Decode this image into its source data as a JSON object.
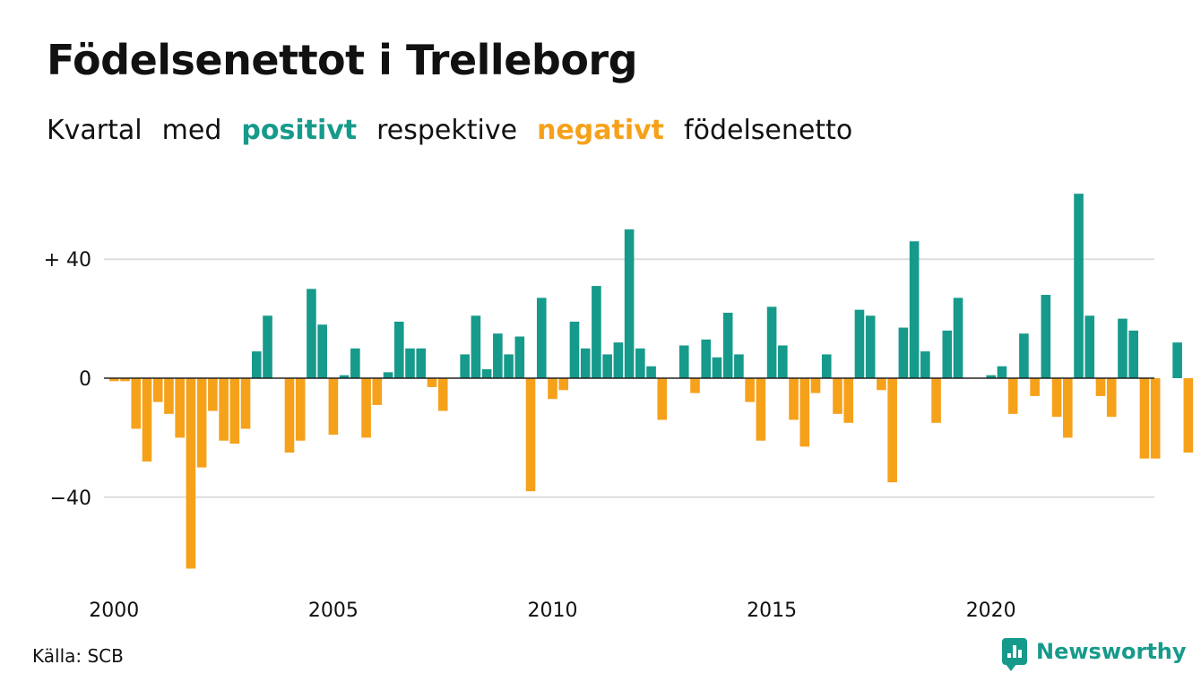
{
  "header": {
    "title": "Födelsenettot i Trelleborg",
    "subtitle": {
      "w1": "Kvartal",
      "w2": "med",
      "positive": "positivt",
      "w3": "respektive",
      "negative": "negativt",
      "w4": "födelsenetto"
    }
  },
  "footer": {
    "source": "Källa: SCB",
    "brand": "Newsworthy",
    "brand_icon": "chart-bubble-icon"
  },
  "colors": {
    "positive": "#169a8b",
    "negative": "#f6a11a",
    "grid": "#dddddd",
    "text": "#111111"
  },
  "chart_data": {
    "type": "bar",
    "title": "Födelsenettot i Trelleborg",
    "xlabel": "",
    "ylabel": "",
    "x_start": "2000 Q1",
    "quarters_per_year": 4,
    "x_ticks": [
      "2000",
      "2005",
      "2010",
      "2015",
      "2020"
    ],
    "y_ticks": [
      {
        "value": 40,
        "label": "+ 40"
      },
      {
        "value": 0,
        "label": "0"
      },
      {
        "value": -40,
        "label": "−40"
      }
    ],
    "ylim": [
      -66,
      63
    ],
    "grid": true,
    "legend": "none",
    "values": [
      -1,
      -1,
      -17,
      -28,
      -8,
      -12,
      -20,
      -64,
      -30,
      -11,
      -21,
      -22,
      -17,
      9,
      21,
      0,
      -25,
      -21,
      30,
      18,
      -19,
      1,
      10,
      -20,
      -9,
      2,
      19,
      10,
      10,
      -3,
      -11,
      0,
      8,
      21,
      3,
      15,
      8,
      14,
      -38,
      27,
      -7,
      -4,
      19,
      10,
      31,
      8,
      12,
      50,
      10,
      4,
      -14,
      0,
      11,
      -5,
      13,
      7,
      22,
      8,
      -8,
      -21,
      24,
      11,
      -14,
      -23,
      -5,
      8,
      -12,
      -15,
      23,
      21,
      -4,
      -35,
      17,
      46,
      9,
      -15,
      16,
      27,
      0,
      0,
      1,
      4,
      -12,
      15,
      -6,
      28,
      -13,
      -20,
      62,
      21,
      -6,
      -13,
      20,
      16,
      -27,
      -27,
      0,
      12,
      -25
    ]
  }
}
